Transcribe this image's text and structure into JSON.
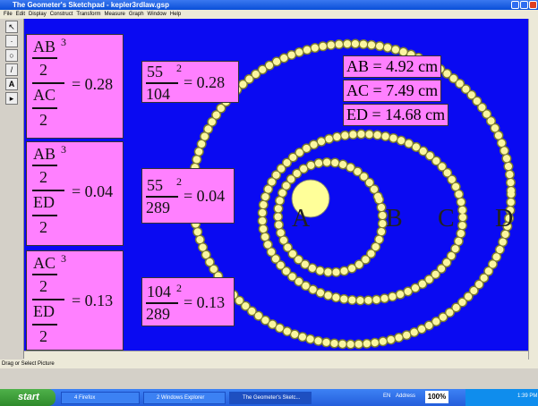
{
  "window": {
    "title": "The Geometer's Sketchpad - kepler3rdlaw.gsp"
  },
  "menu": [
    "File",
    "Edit",
    "Display",
    "Construct",
    "Transform",
    "Measure",
    "Graph",
    "Window",
    "Help"
  ],
  "formulas": [
    {
      "top": "AB",
      "exponent": "3",
      "top_den": "2",
      "bottom": "AC",
      "bottom_den": "2",
      "result": "= 0.28"
    },
    {
      "top": "AB",
      "exponent": "3",
      "top_den": "2",
      "bottom": "ED",
      "bottom_den": "2",
      "result": "= 0.04"
    },
    {
      "top": "AC",
      "exponent": "3",
      "top_den": "2",
      "bottom": "ED",
      "bottom_den": "2",
      "result": "= 0.13"
    }
  ],
  "numeric": [
    {
      "base": "55",
      "exponent": "2",
      "denominator": "104",
      "result": "= 0.28"
    },
    {
      "base": "55",
      "exponent": "2",
      "denominator": "289",
      "result": "= 0.04"
    },
    {
      "base": "104",
      "exponent": "2",
      "denominator": "289",
      "result": "= 0.13"
    }
  ],
  "measurements": [
    "AB = 4.92 cm",
    "AC = 7.49 cm",
    "ED = 14.68 cm"
  ],
  "points": [
    "A",
    "B",
    "C",
    "D"
  ],
  "status": "Drag or Select Picture",
  "taskbar": {
    "start": "start",
    "items": [
      "4 Firefox",
      "2 Windows Explorer",
      "The Geometer's Sketc..."
    ],
    "language": "EN",
    "address": "Address",
    "zoom": "100%",
    "clock": "1:39 PM"
  }
}
